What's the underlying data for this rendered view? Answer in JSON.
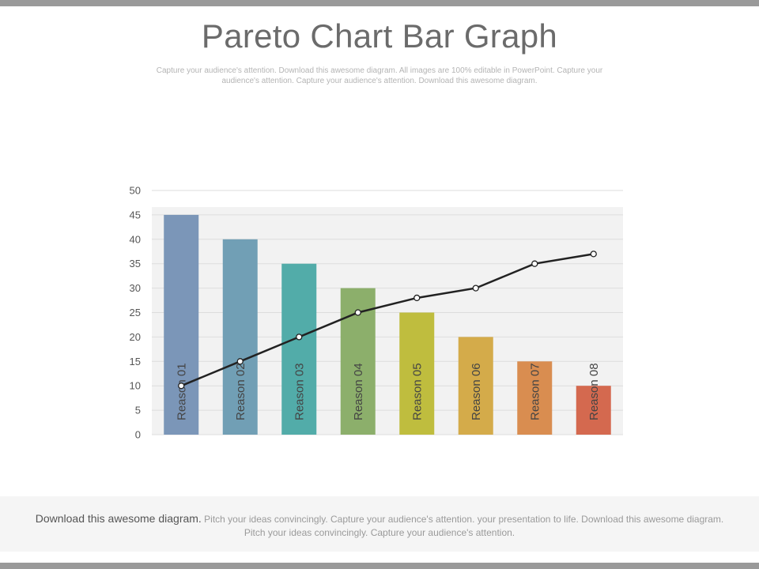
{
  "header": {
    "title": "Pareto Chart Bar Graph",
    "subtitle": "Capture your audience's attention. Download this awesome diagram. All images are 100% editable in PowerPoint. Capture your audience's attention. Capture your audience's attention. Download this awesome diagram."
  },
  "footer": {
    "lead": "Download this awesome diagram.",
    "body": " Pitch your ideas convincingly. Capture your audience's attention. your presentation to life. Download this awesome diagram. Pitch your ideas convincingly. Capture your audience's attention."
  },
  "chart_data": {
    "type": "bar",
    "title": "",
    "xlabel": "",
    "ylabel": "",
    "ylim": [
      0,
      50
    ],
    "yticks": [
      0,
      5,
      10,
      15,
      20,
      25,
      30,
      35,
      40,
      45,
      50
    ],
    "grid": true,
    "categories": [
      "Reason 01",
      "Reason 02",
      "Reason 03",
      "Reason 04",
      "Reason 05",
      "Reason 06",
      "Reason 07",
      "Reason 08"
    ],
    "series": [
      {
        "type": "bar",
        "values": [
          45,
          40,
          35,
          30,
          25,
          20,
          15,
          10
        ],
        "colors": [
          "#7b96b8",
          "#719fb5",
          "#52aca9",
          "#8caf6b",
          "#bfbd3e",
          "#d4ab4a",
          "#d98d50",
          "#d4694f"
        ]
      },
      {
        "type": "line",
        "values": [
          10,
          15,
          20,
          25,
          28,
          30,
          35,
          37
        ],
        "color": "#222222"
      }
    ]
  }
}
